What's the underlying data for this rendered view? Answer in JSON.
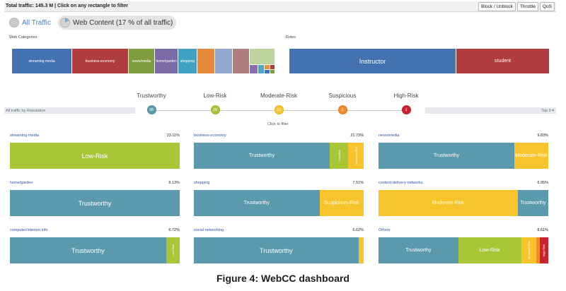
{
  "colors": {
    "trustworthy": "#5a9aac",
    "low_risk": "#a9c637",
    "moderate_risk": "#f8c42b",
    "suspicious": "#f08c29",
    "high_risk": "#c9232f",
    "instructor": "#4471b0",
    "student": "#b03e40"
  },
  "topbar": {
    "total": "Total traffic: 145.3 M | Click on any rectangle to filter",
    "buttons": [
      "Block / Unblock",
      "Throttle",
      "QoS"
    ]
  },
  "toggle": {
    "all_label": "All Traffic",
    "web_label": "Web Content (17 % of all traffic)",
    "web_share_percent": 17
  },
  "treemaps": {
    "web_categories_label": "Web Categories",
    "roles_label": "Roles",
    "categories": [
      "streaming-media",
      "business-economy",
      "news/media",
      "home/garden",
      "shopping"
    ],
    "roles": [
      "Instructor",
      "student"
    ]
  },
  "reputation": {
    "left_label": "All traffic by Reputation",
    "right_label": "Top 9 ▾",
    "click_hint": "Click to filter",
    "items": [
      {
        "label": "Trustworthy",
        "count": "58",
        "color": "#5a9aac"
      },
      {
        "label": "Low-Risk",
        "count": "28",
        "color": "#a9c637"
      },
      {
        "label": "Moderate-Risk",
        "count": "13",
        "color": "#f8c42b"
      },
      {
        "label": "Suspicious",
        "count": "1",
        "color": "#f08c29"
      },
      {
        "label": "High-Risk",
        "count": "1",
        "color": "#c9232f"
      }
    ]
  },
  "cards": [
    {
      "name": "streaming-media",
      "percent": "23.11%",
      "segments": [
        {
          "label": "Low-Risk",
          "share": 100,
          "color": "#a9c637"
        }
      ]
    },
    {
      "name": "business-economy",
      "percent": "21.73%",
      "segments": [
        {
          "label": "Trustworthy",
          "share": 80,
          "color": "#5a9aac"
        },
        {
          "label": "Low-Risk",
          "share": 11,
          "color": "#a9c637"
        },
        {
          "label": "Moderate-Risk",
          "share": 9,
          "color": "#f8c42b"
        }
      ]
    },
    {
      "name": "news/media",
      "percent": "9.83%",
      "segments": [
        {
          "label": "Trustworthy",
          "share": 80,
          "color": "#5a9aac"
        },
        {
          "label": "Moderate-Risk",
          "share": 20,
          "color": "#f8c42b"
        }
      ]
    },
    {
      "name": "home/garden",
      "percent": "9.13%",
      "segments": [
        {
          "label": "Trustworthy",
          "share": 100,
          "color": "#5a9aac"
        }
      ]
    },
    {
      "name": "shopping",
      "percent": "7.51%",
      "segments": [
        {
          "label": "Trustworthy",
          "share": 74,
          "color": "#5a9aac"
        },
        {
          "label": "Suspicious-Risk",
          "share": 26,
          "color": "#f8c42b"
        }
      ]
    },
    {
      "name": "content-delivery-networks",
      "percent": "6.95%",
      "segments": [
        {
          "label": "Moderate-Risk",
          "share": 82,
          "color": "#f8c42b"
        },
        {
          "label": "Trustworthy",
          "share": 18,
          "color": "#5a9aac"
        }
      ]
    },
    {
      "name": "computer/internet-info",
      "percent": "6.72%",
      "segments": [
        {
          "label": "Trustworthy",
          "share": 92,
          "color": "#5a9aac"
        },
        {
          "label": "Low-Risk",
          "share": 8,
          "color": "#a9c637"
        }
      ]
    },
    {
      "name": "social networking",
      "percent": "6.62%",
      "segments": [
        {
          "label": "Trustworthy",
          "share": 97,
          "color": "#5a9aac"
        },
        {
          "label": "",
          "share": 3,
          "color": "#f8c42b"
        }
      ]
    },
    {
      "name": "Others",
      "percent": "8.61%",
      "segments": [
        {
          "label": "Trustworthy",
          "share": 47,
          "color": "#5a9aac"
        },
        {
          "label": "Low-Risk",
          "share": 37,
          "color": "#a9c637"
        },
        {
          "label": "Moderate-Risk",
          "share": 9,
          "color": "#f8c42b"
        },
        {
          "label": "",
          "share": 2,
          "color": "#f08c29"
        },
        {
          "label": "High-Risk",
          "share": 5,
          "color": "#c9232f"
        }
      ]
    }
  ],
  "caption": "Figure 4: WebCC dashboard"
}
